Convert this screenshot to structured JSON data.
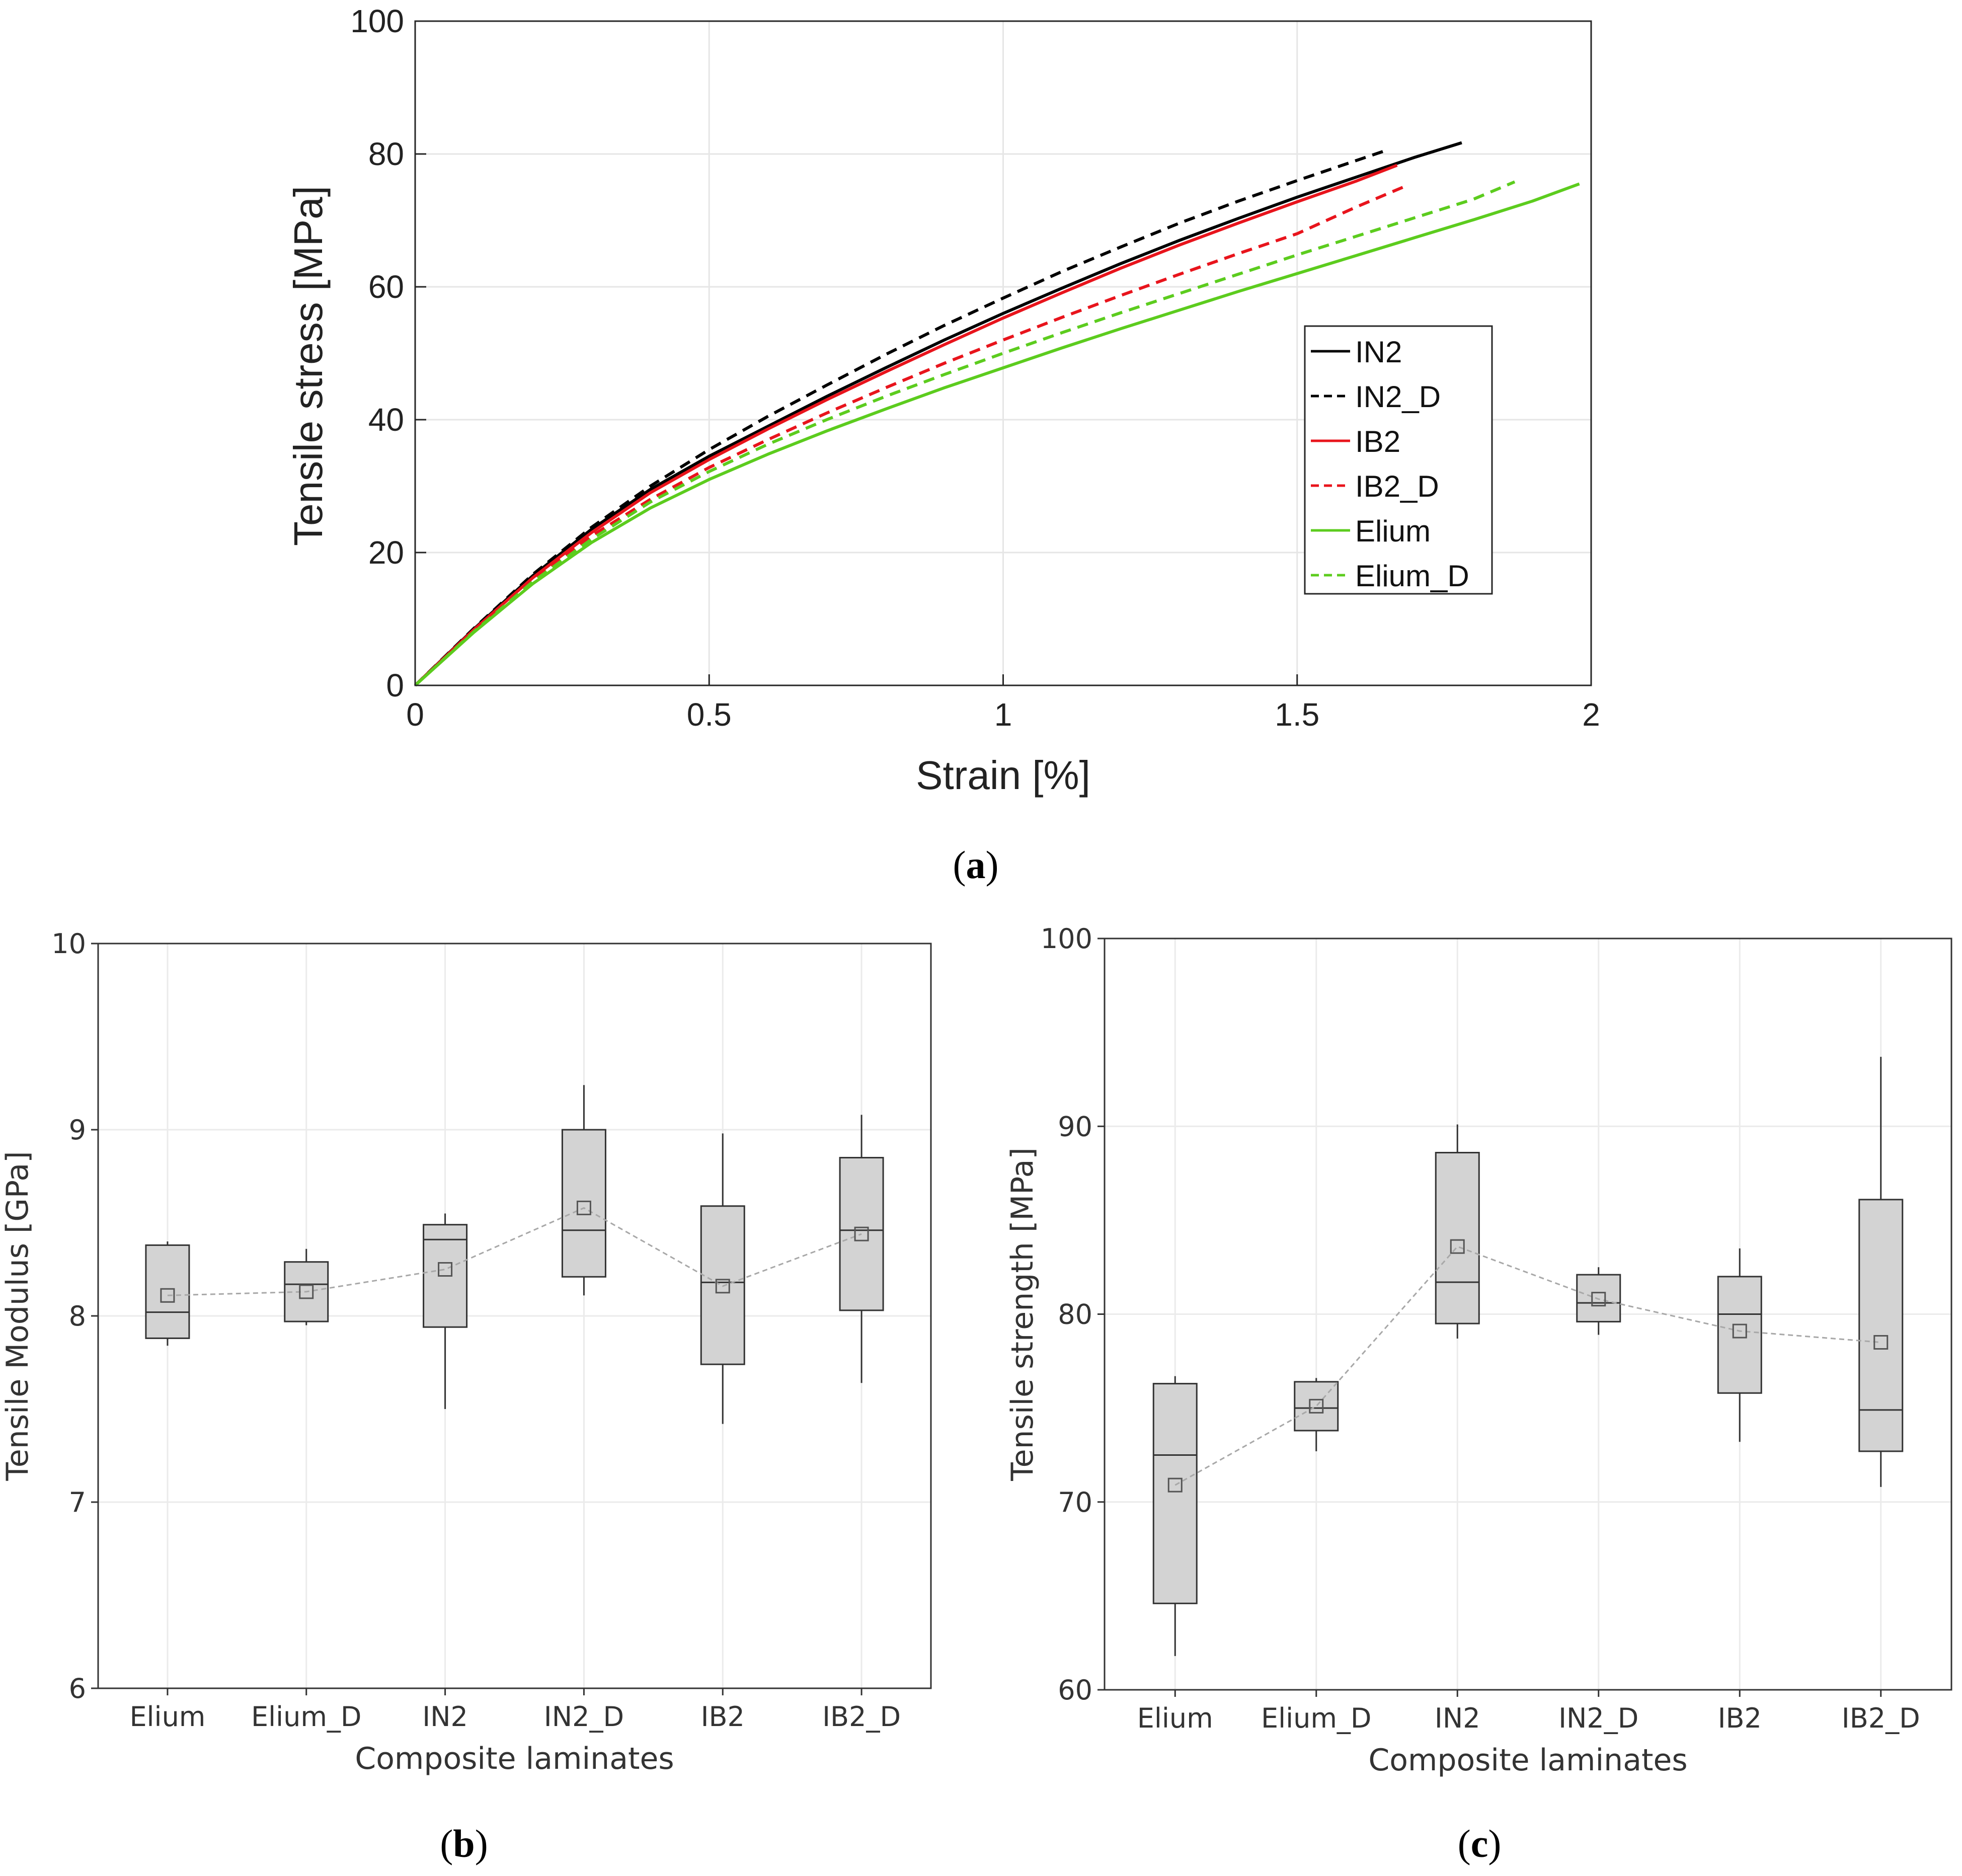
{
  "chart_data": [
    {
      "id": "a",
      "type": "line",
      "caption": "a",
      "xlabel": "Strain [%]",
      "ylabel": "Tensile stress [MPa]",
      "xlim": [
        0,
        2
      ],
      "ylim": [
        0,
        100
      ],
      "xticks": [
        0,
        0.5,
        1,
        1.5,
        2
      ],
      "yticks": [
        0,
        20,
        40,
        60,
        80,
        100
      ],
      "xtick_labels": [
        "0",
        "0.5",
        "1",
        "1.5",
        "2"
      ],
      "ytick_labels": [
        "0",
        "20",
        "40",
        "60",
        "80",
        "100"
      ],
      "grid": true,
      "legend_position": "right",
      "series": [
        {
          "name": "IN2",
          "color": "#000000",
          "dash": false,
          "x": [
            0,
            0.1,
            0.2,
            0.3,
            0.4,
            0.5,
            0.6,
            0.7,
            0.8,
            0.9,
            1.0,
            1.1,
            1.2,
            1.3,
            1.4,
            1.5,
            1.6,
            1.7,
            1.78
          ],
          "y": [
            0,
            8.5,
            16.5,
            23.5,
            29.5,
            34.5,
            39.0,
            43.5,
            47.8,
            52.0,
            56.0,
            59.8,
            63.5,
            67.0,
            70.3,
            73.5,
            76.5,
            79.5,
            81.7
          ]
        },
        {
          "name": "IN2_D",
          "color": "#000000",
          "dash": true,
          "x": [
            0,
            0.1,
            0.2,
            0.3,
            0.4,
            0.5,
            0.6,
            0.7,
            0.8,
            0.9,
            1.0,
            1.1,
            1.2,
            1.3,
            1.4,
            1.5,
            1.6,
            1.65
          ],
          "y": [
            0,
            8.6,
            16.7,
            23.8,
            30.0,
            35.5,
            40.5,
            45.2,
            49.8,
            54.2,
            58.3,
            62.3,
            66.0,
            69.6,
            72.9,
            76.0,
            79.0,
            80.5
          ]
        },
        {
          "name": "IB2",
          "color": "#e8141c",
          "dash": false,
          "x": [
            0,
            0.1,
            0.2,
            0.3,
            0.4,
            0.5,
            0.6,
            0.7,
            0.8,
            0.9,
            1.0,
            1.1,
            1.2,
            1.3,
            1.4,
            1.5,
            1.6,
            1.67
          ],
          "y": [
            0,
            8.4,
            16.2,
            23.0,
            29.0,
            34.0,
            38.6,
            43.0,
            47.2,
            51.3,
            55.3,
            59.1,
            62.8,
            66.3,
            69.6,
            72.8,
            75.9,
            78.3
          ]
        },
        {
          "name": "IB2_D",
          "color": "#e8141c",
          "dash": true,
          "x": [
            0,
            0.1,
            0.2,
            0.3,
            0.4,
            0.5,
            0.6,
            0.7,
            0.8,
            0.9,
            1.0,
            1.1,
            1.2,
            1.3,
            1.4,
            1.5,
            1.6,
            1.68
          ],
          "y": [
            0,
            8.3,
            16.0,
            22.5,
            28.0,
            32.8,
            37.0,
            41.0,
            44.8,
            48.5,
            52.0,
            55.4,
            58.7,
            61.9,
            65.0,
            68.0,
            72.0,
            75.0
          ]
        },
        {
          "name": "Elium",
          "color": "#5ccc1e",
          "dash": false,
          "x": [
            0,
            0.1,
            0.2,
            0.3,
            0.4,
            0.5,
            0.6,
            0.7,
            0.8,
            0.9,
            1.0,
            1.1,
            1.2,
            1.3,
            1.4,
            1.5,
            1.6,
            1.7,
            1.8,
            1.9,
            1.98
          ],
          "y": [
            0,
            8.0,
            15.3,
            21.5,
            26.7,
            31.0,
            34.8,
            38.3,
            41.6,
            44.8,
            47.8,
            50.8,
            53.7,
            56.5,
            59.3,
            62.0,
            64.7,
            67.4,
            70.1,
            72.9,
            75.5
          ]
        },
        {
          "name": "Elium_D",
          "color": "#5ccc1e",
          "dash": true,
          "x": [
            0,
            0.1,
            0.2,
            0.3,
            0.4,
            0.5,
            0.6,
            0.7,
            0.8,
            0.9,
            1.0,
            1.1,
            1.2,
            1.3,
            1.4,
            1.5,
            1.6,
            1.7,
            1.8,
            1.87
          ],
          "y": [
            0,
            8.1,
            15.6,
            22.0,
            27.6,
            32.2,
            36.3,
            40.0,
            43.5,
            46.8,
            50.0,
            53.1,
            56.1,
            59.0,
            61.9,
            64.8,
            67.6,
            70.4,
            73.2,
            75.8
          ]
        }
      ]
    },
    {
      "id": "b",
      "type": "box",
      "caption": "b",
      "xlabel": "Composite laminates",
      "ylabel": "Tensile Modulus [GPa]",
      "ylim": [
        6,
        10
      ],
      "yticks": [
        6,
        7,
        8,
        9,
        10
      ],
      "ytick_labels": [
        "6",
        "7",
        "8",
        "9",
        "10"
      ],
      "grid": true,
      "categories": [
        "Elium",
        "Elium_D",
        "IN2",
        "IN2_D",
        "IB2",
        "IB2_D"
      ],
      "boxes": [
        {
          "min": 7.84,
          "q1": 7.88,
          "median": 8.02,
          "q3": 8.38,
          "max": 8.4,
          "mean": 8.11
        },
        {
          "min": 7.95,
          "q1": 7.97,
          "median": 8.17,
          "q3": 8.29,
          "max": 8.36,
          "mean": 8.13
        },
        {
          "min": 7.5,
          "q1": 7.94,
          "median": 8.41,
          "q3": 8.49,
          "max": 8.55,
          "mean": 8.25
        },
        {
          "min": 8.11,
          "q1": 8.21,
          "median": 8.46,
          "q3": 9.0,
          "max": 9.24,
          "mean": 8.58
        },
        {
          "min": 7.42,
          "q1": 7.74,
          "median": 8.18,
          "q3": 8.59,
          "max": 8.98,
          "mean": 8.16
        },
        {
          "min": 7.64,
          "q1": 8.03,
          "median": 8.46,
          "q3": 8.85,
          "max": 9.08,
          "mean": 8.44
        }
      ]
    },
    {
      "id": "c",
      "type": "box",
      "caption": "c",
      "xlabel": "Composite laminates",
      "ylabel": "Tensile strength [MPa]",
      "ylim": [
        60,
        100
      ],
      "yticks": [
        60,
        70,
        80,
        90,
        100
      ],
      "ytick_labels": [
        "60",
        "70",
        "80",
        "90",
        "100"
      ],
      "grid": true,
      "categories": [
        "Elium",
        "Elium_D",
        "IN2",
        "IN2_D",
        "IB2",
        "IB2_D"
      ],
      "boxes": [
        {
          "min": 61.8,
          "q1": 64.6,
          "median": 72.5,
          "q3": 76.3,
          "max": 76.7,
          "mean": 70.9
        },
        {
          "min": 72.7,
          "q1": 73.8,
          "median": 75.0,
          "q3": 76.4,
          "max": 76.6,
          "mean": 75.1
        },
        {
          "min": 78.7,
          "q1": 79.5,
          "median": 81.7,
          "q3": 88.6,
          "max": 90.1,
          "mean": 83.6
        },
        {
          "min": 78.9,
          "q1": 79.6,
          "median": 80.6,
          "q3": 82.1,
          "max": 82.5,
          "mean": 80.8
        },
        {
          "min": 73.2,
          "q1": 75.8,
          "median": 80.0,
          "q3": 82.0,
          "max": 83.5,
          "mean": 79.1
        },
        {
          "min": 70.8,
          "q1": 72.7,
          "median": 74.9,
          "q3": 86.1,
          "max": 93.7,
          "mean": 78.5
        }
      ]
    }
  ]
}
